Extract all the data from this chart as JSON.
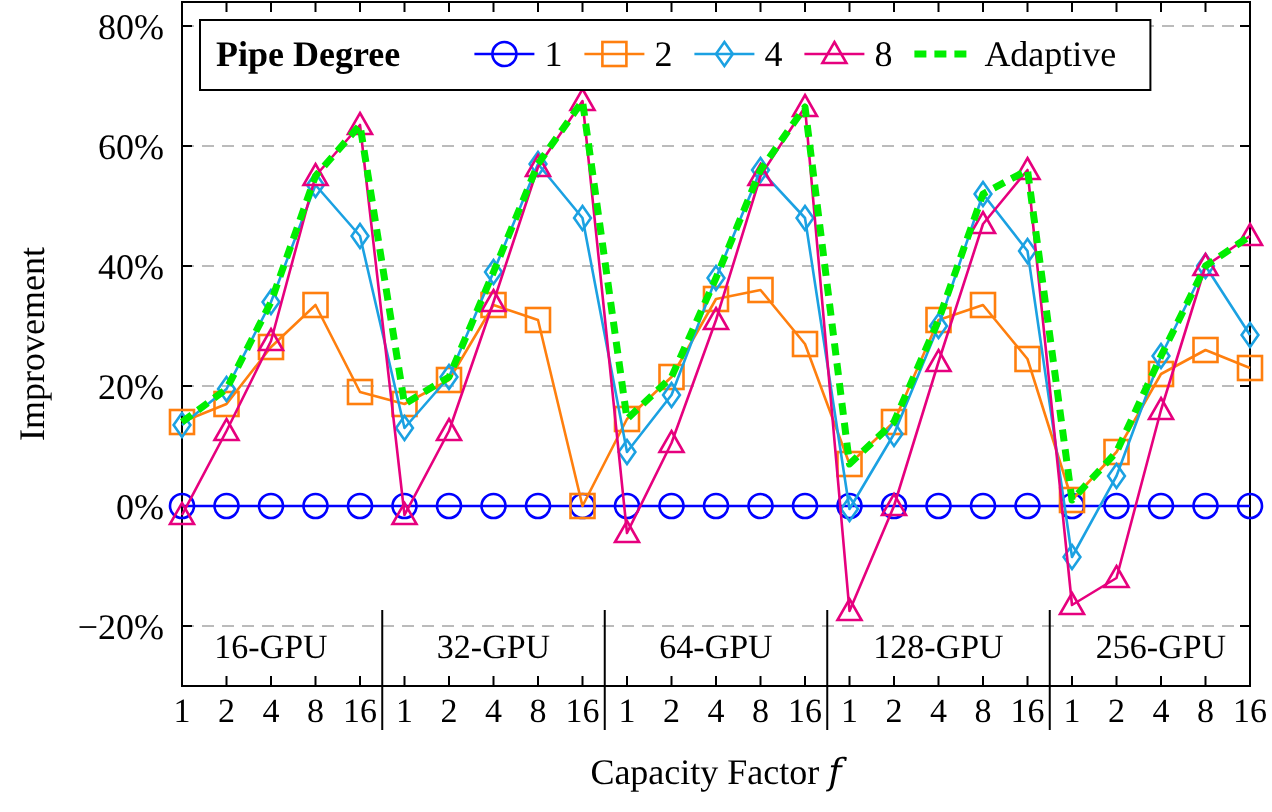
{
  "chart_data": {
    "type": "line",
    "xlabel": "Capacity Factor 𝑓",
    "ylabel": "Improvement",
    "categories": [
      "1",
      "2",
      "4",
      "8",
      "16",
      "1",
      "2",
      "4",
      "8",
      "16",
      "1",
      "2",
      "4",
      "8",
      "16",
      "1",
      "2",
      "4",
      "8",
      "16",
      "1",
      "2",
      "4",
      "8",
      "16"
    ],
    "ylim": [
      -30,
      84
    ],
    "yticks": [
      {
        "value": -20,
        "label": "−20%"
      },
      {
        "value": 0,
        "label": "0%"
      },
      {
        "value": 20,
        "label": "20%"
      },
      {
        "value": 40,
        "label": "40%"
      },
      {
        "value": 60,
        "label": "60%"
      },
      {
        "value": 80,
        "label": "80%"
      }
    ],
    "grid": "y",
    "legend": "top",
    "legend_title": "Pipe Degree",
    "annotations": [
      "16-GPU",
      "32-GPU",
      "64-GPU",
      "128-GPU",
      "256-GPU"
    ],
    "series": [
      {
        "name": "1",
        "color": "#0000ff",
        "marker": "circle",
        "line_style": "solid",
        "values": [
          0,
          0,
          0,
          0,
          0,
          0,
          0,
          0,
          0,
          0,
          0,
          0,
          0,
          0,
          0,
          0,
          0,
          0,
          0,
          0,
          0,
          0,
          0,
          0,
          0
        ]
      },
      {
        "name": "2",
        "color": "#ff7f0e",
        "marker": "square",
        "line_style": "solid",
        "values": [
          14,
          17,
          26.5,
          33.5,
          19,
          17,
          21,
          33.5,
          31,
          0,
          14.5,
          21.5,
          34.5,
          36,
          27,
          7,
          14,
          31,
          33.5,
          24.5,
          1,
          9,
          22,
          26,
          23
        ]
      },
      {
        "name": "4",
        "color": "#1ba1e2",
        "marker": "diamond",
        "line_style": "solid",
        "values": [
          13.5,
          19.5,
          34,
          53.5,
          45,
          13,
          21.5,
          39,
          57,
          48,
          9,
          18.5,
          38,
          56,
          48,
          -0.5,
          12,
          30,
          52,
          42.5,
          -8.5,
          5,
          25,
          40,
          28.5
        ]
      },
      {
        "name": "8",
        "color": "#e6007e",
        "marker": "triangle",
        "line_style": "solid",
        "values": [
          -1.5,
          12.5,
          27.5,
          55,
          63.5,
          -1.5,
          12.5,
          34,
          56.5,
          67.5,
          -4.5,
          10.5,
          31,
          55,
          66.5,
          -17.5,
          0,
          24,
          47,
          56,
          -16.5,
          -12,
          16,
          40,
          45
        ]
      },
      {
        "name": "Adaptive",
        "color": "#00ee00",
        "marker": "none",
        "line_style": "dashed",
        "values": [
          14,
          19.5,
          34,
          55,
          63.5,
          17,
          21.5,
          39,
          57,
          67.5,
          14.5,
          21.5,
          38,
          56,
          66.5,
          7,
          14,
          31,
          52,
          56,
          1,
          9,
          25,
          40,
          45
        ]
      }
    ]
  }
}
